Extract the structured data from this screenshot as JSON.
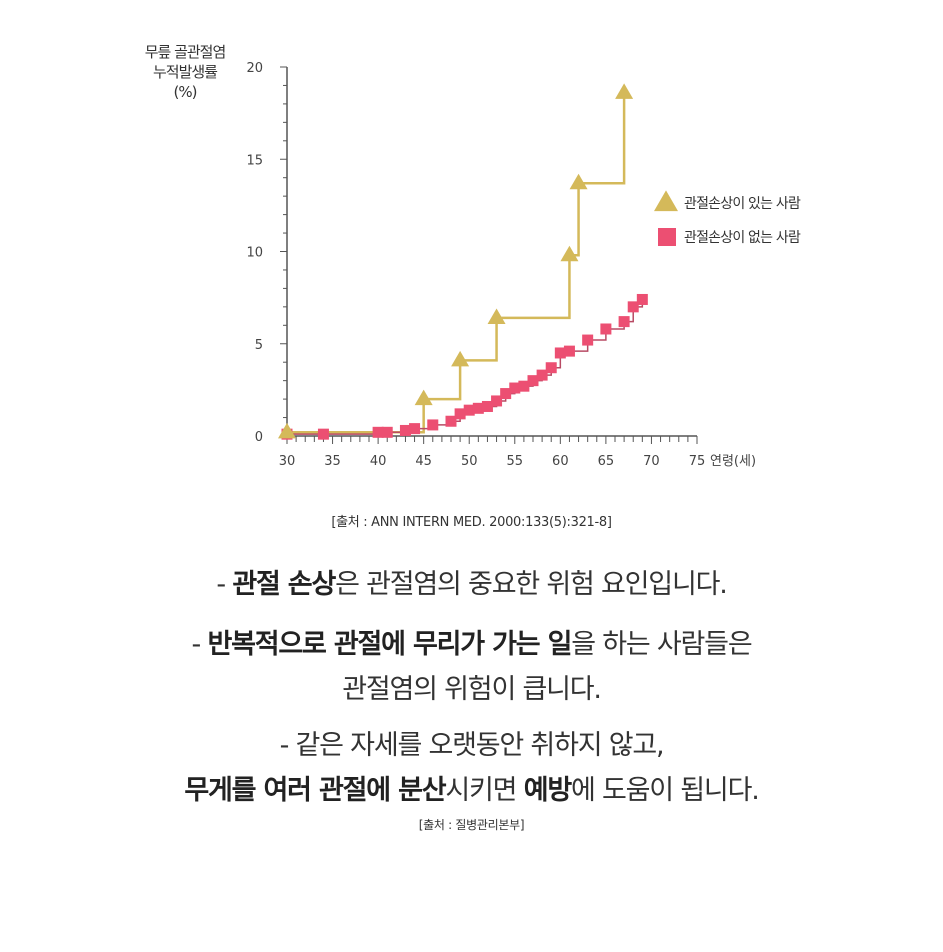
{
  "chart_data": {
    "type": "line",
    "ylabel_lines": [
      "무릎 골관절염",
      "누적발생률",
      "(%)"
    ],
    "xlabel": "연령(세)",
    "xlim": [
      30,
      75
    ],
    "ylim": [
      0,
      20
    ],
    "xticks": [
      30,
      35,
      40,
      45,
      50,
      55,
      60,
      65,
      70,
      75
    ],
    "yticks": [
      0,
      5,
      10,
      15,
      20
    ],
    "grid": false,
    "legend_position": "right",
    "series": [
      {
        "name": "관절손상이 있는 사람",
        "marker": "triangle",
        "color": "#d4b95a",
        "x": [
          30,
          45,
          49,
          53,
          61,
          62,
          67
        ],
        "y": [
          0.2,
          2.0,
          4.1,
          6.4,
          9.8,
          13.7,
          18.6
        ]
      },
      {
        "name": "관절손상이 없는 사람",
        "marker": "square",
        "color": "#ec4f72",
        "x": [
          30,
          34,
          40,
          41,
          43,
          44,
          46,
          48,
          49,
          50,
          51,
          52,
          53,
          54,
          55,
          56,
          57,
          58,
          59,
          60,
          61,
          63,
          65,
          67,
          68,
          69
        ],
        "y": [
          0.1,
          0.1,
          0.2,
          0.2,
          0.3,
          0.4,
          0.6,
          0.8,
          1.2,
          1.4,
          1.5,
          1.6,
          1.9,
          2.3,
          2.6,
          2.7,
          3.0,
          3.3,
          3.7,
          4.5,
          4.6,
          5.2,
          5.8,
          6.2,
          7.0,
          7.4
        ]
      }
    ]
  },
  "source_chart": "[출처 : ANN INTERN MED. 2000:133(5):321-8]",
  "text": {
    "l1": {
      "p1": "- ",
      "b1": "관절 손상",
      "p2": "은 관절염의 중요한 위험 요인입니다."
    },
    "l2": {
      "p1": "- ",
      "b1": "반복적으로 관절에 무리가 가는 일",
      "p2": "을 하는 사람들은"
    },
    "l3": "관절염의 위험이 큽니다.",
    "l4": "- 같은 자세를 오랫동안 취하지 않고,",
    "l5": {
      "b1": "무게를 여러 관절에 분산",
      "p1": "시키면 ",
      "b2": "예방",
      "p2": "에 도움이 됩니다."
    }
  },
  "source_text": "[출처 : 질병관리본부]"
}
